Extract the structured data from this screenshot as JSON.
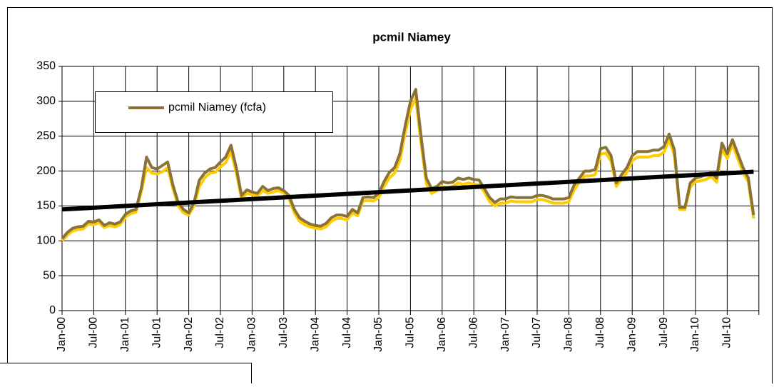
{
  "chart_data": {
    "type": "line",
    "title": "pcmil Niamey",
    "categories": [
      "Jan-00",
      null,
      null,
      null,
      null,
      null,
      "Jul-00",
      null,
      null,
      null,
      null,
      null,
      "Jan-01",
      null,
      null,
      null,
      null,
      null,
      "Jul-01",
      null,
      null,
      null,
      null,
      null,
      "Jan-02",
      null,
      null,
      null,
      null,
      null,
      "Jul-02",
      null,
      null,
      null,
      null,
      null,
      "Jan-03",
      null,
      null,
      null,
      null,
      null,
      "Jul-03",
      null,
      null,
      null,
      null,
      null,
      "Jan-04",
      null,
      null,
      null,
      null,
      null,
      "Jul-04",
      null,
      null,
      null,
      null,
      null,
      "Jan-05",
      null,
      null,
      null,
      null,
      null,
      "Jul-05",
      null,
      null,
      null,
      null,
      null,
      "Jan-06",
      null,
      null,
      null,
      null,
      null,
      "Jul-06",
      null,
      null,
      null,
      null,
      null,
      "Jan-07",
      null,
      null,
      null,
      null,
      null,
      "Jul-07",
      null,
      null,
      null,
      null,
      null,
      "Jan-08",
      null,
      null,
      null,
      null,
      null,
      "Jul-08",
      null,
      null,
      null,
      null,
      null,
      "Jan-09",
      null,
      null,
      null,
      null,
      null,
      "Jul-09",
      null,
      null,
      null,
      null,
      null,
      "Jan-10",
      null,
      null,
      null,
      null,
      null,
      "Jul-10",
      null,
      null,
      null,
      null,
      null
    ],
    "series": [
      {
        "color": "#ffcc00",
        "values": [
          100,
          108,
          114,
          116,
          117,
          124,
          123,
          126,
          119,
          122,
          120,
          123,
          134,
          139,
          141,
          170,
          205,
          197,
          196,
          199,
          205,
          175,
          150,
          140,
          137,
          150,
          178,
          190,
          197,
          198,
          206,
          212,
          228,
          198,
          160,
          168,
          166,
          164,
          172,
          168,
          170,
          172,
          168,
          160,
          140,
          128,
          123,
          120,
          118,
          117,
          120,
          128,
          132,
          132,
          130,
          140,
          136,
          157,
          158,
          157,
          162,
          178,
          190,
          197,
          215,
          255,
          288,
          305,
          240,
          182,
          168,
          172,
          178,
          176,
          178,
          183,
          181,
          183,
          181,
          180,
          170,
          156,
          150,
          154,
          154,
          157,
          156,
          156,
          156,
          156,
          159,
          159,
          157,
          154,
          154,
          154,
          156,
          173,
          184,
          193,
          193,
          195,
          224,
          226,
          214,
          178,
          188,
          198,
          215,
          220,
          220,
          220,
          222,
          222,
          227,
          245,
          222,
          145,
          145,
          177,
          185,
          186,
          188,
          192,
          184,
          232,
          218,
          238,
          218,
          198,
          184,
          132
        ]
      },
      {
        "name": "pcmil Niamey (fcfa)",
        "color": "#8b7338",
        "values": [
          103,
          112,
          118,
          120,
          121,
          128,
          127,
          130,
          122,
          126,
          124,
          127,
          138,
          143,
          145,
          175,
          220,
          205,
          203,
          208,
          213,
          180,
          155,
          145,
          140,
          155,
          187,
          197,
          203,
          205,
          213,
          220,
          237,
          205,
          165,
          173,
          170,
          168,
          178,
          172,
          175,
          176,
          172,
          165,
          145,
          133,
          128,
          124,
          122,
          121,
          125,
          133,
          137,
          137,
          135,
          145,
          140,
          162,
          163,
          162,
          168,
          185,
          198,
          205,
          225,
          265,
          300,
          317,
          250,
          190,
          175,
          178,
          185,
          183,
          184,
          190,
          188,
          190,
          188,
          187,
          175,
          162,
          155,
          160,
          160,
          163,
          162,
          162,
          162,
          162,
          165,
          165,
          163,
          160,
          160,
          160,
          162,
          180,
          190,
          200,
          200,
          202,
          232,
          234,
          222,
          183,
          195,
          205,
          222,
          228,
          228,
          228,
          230,
          230,
          235,
          253,
          230,
          148,
          148,
          183,
          190,
          192,
          195,
          198,
          190,
          240,
          225,
          245,
          225,
          205,
          190,
          137
        ]
      }
    ],
    "trend": {
      "color": "#000000",
      "values": [
        145,
        199
      ]
    },
    "ylim": [
      0,
      350
    ],
    "yticks": [
      0,
      50,
      100,
      150,
      200,
      250,
      300,
      350
    ],
    "grid": true
  }
}
